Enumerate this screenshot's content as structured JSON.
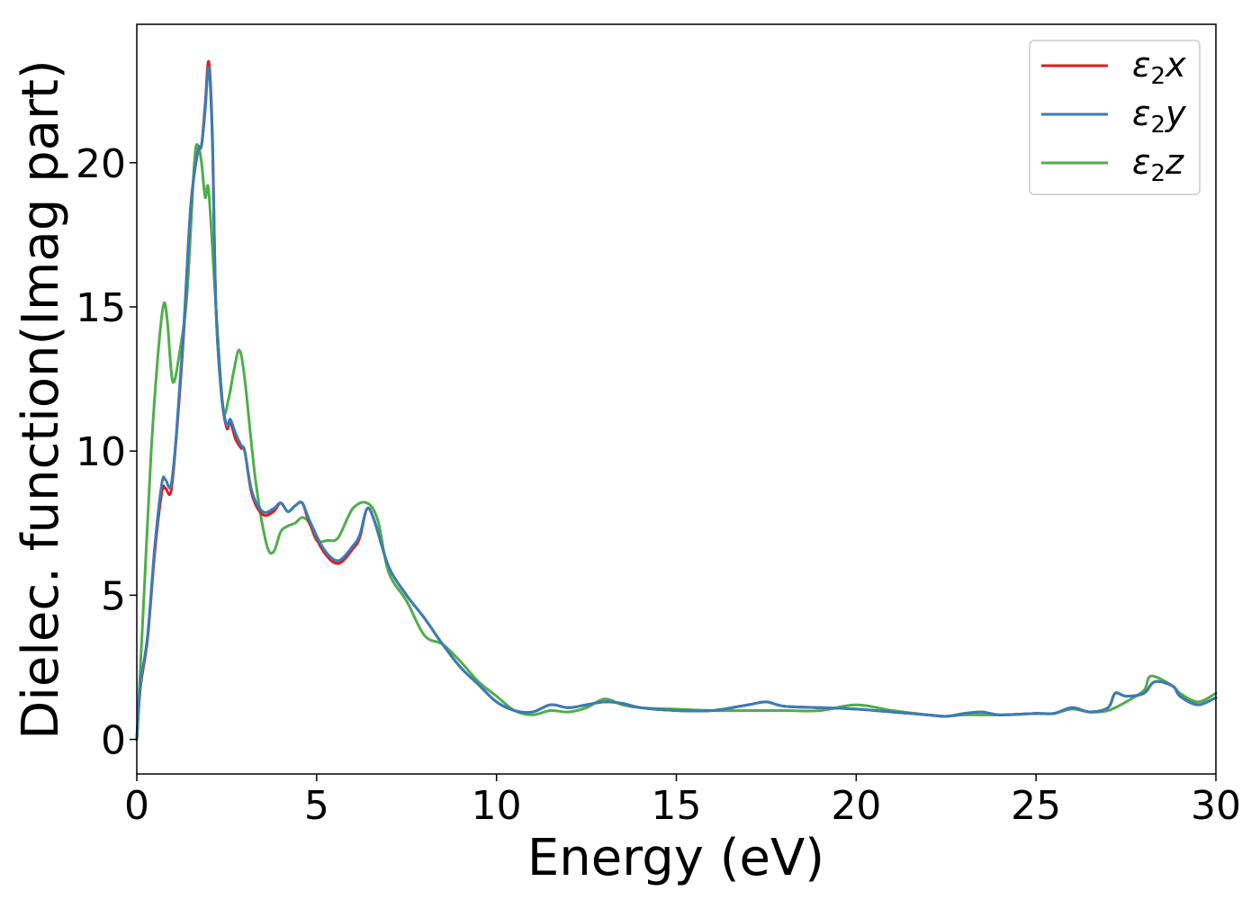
{
  "chart_data": {
    "type": "line",
    "title": "",
    "xlabel": "Energy (eV)",
    "ylabel": "Dielec. function(Imag part)",
    "xlim": [
      0,
      30
    ],
    "ylim": [
      -1.2,
      24.8
    ],
    "xticks": [
      0,
      5,
      10,
      15,
      20,
      25,
      30
    ],
    "yticks": [
      0,
      5,
      10,
      15,
      20
    ],
    "grid": false,
    "legend_position": "top-right",
    "series": [
      {
        "name": "ε2x",
        "legend": {
          "base": "ε",
          "sub": "2",
          "var": "x"
        },
        "color": "#e41a1c",
        "x": [
          0,
          0.1,
          0.3,
          0.5,
          0.7,
          0.8,
          0.95,
          1.1,
          1.3,
          1.5,
          1.7,
          1.8,
          1.9,
          2.0,
          2.1,
          2.2,
          2.35,
          2.5,
          2.6,
          2.75,
          2.9,
          3.0,
          3.2,
          3.5,
          3.8,
          4.0,
          4.2,
          4.4,
          4.6,
          4.8,
          5.2,
          5.6,
          6.0,
          6.2,
          6.4,
          6.6,
          7.0,
          7.5,
          8.0,
          8.5,
          9.0,
          9.5,
          10.0,
          10.5,
          11.0,
          11.5,
          12.0,
          12.5,
          13.0,
          13.5,
          14.0,
          15.0,
          16.0,
          17.0,
          17.5,
          18.0,
          19.0,
          20.0,
          21.0,
          22.0,
          22.5,
          23.0,
          23.5,
          24.0,
          25.0,
          25.5,
          26.0,
          26.5,
          27.0,
          27.2,
          27.5,
          28.0,
          28.3,
          28.8,
          29.0,
          29.5,
          30.0
        ],
        "values": [
          0,
          1.8,
          3.5,
          6.5,
          8.6,
          8.7,
          8.6,
          10.5,
          14.0,
          18.5,
          20.4,
          20.6,
          22.0,
          23.5,
          21.0,
          15.0,
          12.0,
          10.8,
          11.0,
          10.4,
          10.1,
          10.0,
          8.5,
          7.8,
          7.9,
          8.2,
          7.9,
          8.1,
          8.2,
          7.5,
          6.5,
          6.1,
          6.6,
          7.0,
          8.0,
          7.6,
          6.0,
          5.0,
          4.2,
          3.3,
          2.5,
          1.9,
          1.3,
          1.0,
          0.95,
          1.2,
          1.1,
          1.2,
          1.3,
          1.25,
          1.1,
          1.0,
          1.0,
          1.2,
          1.3,
          1.15,
          1.1,
          1.05,
          0.95,
          0.85,
          0.8,
          0.9,
          0.95,
          0.85,
          0.9,
          0.9,
          1.1,
          0.95,
          1.1,
          1.6,
          1.5,
          1.6,
          2.0,
          1.85,
          1.5,
          1.2,
          1.45
        ]
      },
      {
        "name": "ε2y",
        "legend": {
          "base": "ε",
          "sub": "2",
          "var": "y"
        },
        "color": "#377eb8",
        "x": [
          0,
          0.1,
          0.3,
          0.5,
          0.7,
          0.8,
          0.95,
          1.1,
          1.3,
          1.5,
          1.7,
          1.8,
          1.9,
          2.0,
          2.1,
          2.2,
          2.35,
          2.5,
          2.6,
          2.75,
          2.9,
          3.0,
          3.2,
          3.5,
          3.8,
          4.0,
          4.2,
          4.4,
          4.6,
          4.8,
          5.2,
          5.6,
          6.0,
          6.2,
          6.4,
          6.6,
          7.0,
          7.5,
          8.0,
          8.5,
          9.0,
          9.5,
          10.0,
          10.5,
          11.0,
          11.5,
          12.0,
          12.5,
          13.0,
          13.5,
          14.0,
          15.0,
          16.0,
          17.0,
          17.5,
          18.0,
          19.0,
          20.0,
          21.0,
          22.0,
          22.5,
          23.0,
          23.5,
          24.0,
          25.0,
          25.5,
          26.0,
          26.5,
          27.0,
          27.2,
          27.5,
          28.0,
          28.3,
          28.8,
          29.0,
          29.5,
          30.0
        ],
        "values": [
          0,
          1.9,
          3.6,
          6.7,
          8.9,
          9.0,
          8.8,
          10.6,
          14.2,
          18.5,
          20.4,
          20.6,
          21.8,
          23.3,
          20.8,
          15.0,
          12.0,
          10.9,
          11.1,
          10.6,
          10.2,
          10.0,
          8.6,
          7.9,
          8.0,
          8.2,
          7.9,
          8.1,
          8.2,
          7.6,
          6.6,
          6.2,
          6.7,
          7.1,
          8.0,
          7.6,
          6.0,
          5.0,
          4.2,
          3.3,
          2.5,
          1.9,
          1.3,
          1.0,
          0.95,
          1.2,
          1.1,
          1.2,
          1.3,
          1.25,
          1.1,
          1.0,
          1.0,
          1.2,
          1.3,
          1.15,
          1.1,
          1.05,
          0.95,
          0.85,
          0.8,
          0.9,
          0.95,
          0.85,
          0.9,
          0.9,
          1.1,
          0.95,
          1.1,
          1.6,
          1.5,
          1.6,
          2.0,
          1.85,
          1.5,
          1.2,
          1.45
        ]
      },
      {
        "name": "ε2z",
        "legend": {
          "base": "ε",
          "sub": "2",
          "var": "z"
        },
        "color": "#4daf4a",
        "x": [
          0,
          0.2,
          0.4,
          0.6,
          0.75,
          0.85,
          1.0,
          1.2,
          1.4,
          1.6,
          1.7,
          1.8,
          1.9,
          2.0,
          2.2,
          2.4,
          2.55,
          2.7,
          2.85,
          3.0,
          3.3,
          3.6,
          3.8,
          4.0,
          4.2,
          4.4,
          4.6,
          4.8,
          5.0,
          5.3,
          5.6,
          6.0,
          6.4,
          6.7,
          7.0,
          7.5,
          8.0,
          8.5,
          9.0,
          9.5,
          10.0,
          10.5,
          11.0,
          11.5,
          12.0,
          12.5,
          13.0,
          13.5,
          14.0,
          15.0,
          16.0,
          17.0,
          18.0,
          19.0,
          20.0,
          21.0,
          22.0,
          22.5,
          23.0,
          24.0,
          25.0,
          25.5,
          26.0,
          26.5,
          27.0,
          27.5,
          28.0,
          28.2,
          28.8,
          29.0,
          29.5,
          30.0
        ],
        "values": [
          0,
          5.0,
          10.0,
          13.5,
          15.1,
          14.5,
          12.4,
          13.5,
          15.5,
          20.0,
          20.6,
          20.0,
          18.8,
          19.0,
          15.0,
          11.5,
          11.8,
          12.8,
          13.5,
          12.5,
          9.0,
          6.8,
          6.5,
          7.2,
          7.4,
          7.5,
          7.7,
          7.5,
          6.9,
          6.9,
          7.0,
          8.0,
          8.2,
          7.6,
          5.8,
          4.8,
          3.6,
          3.3,
          2.7,
          2.0,
          1.5,
          1.0,
          0.85,
          1.0,
          0.95,
          1.1,
          1.4,
          1.2,
          1.1,
          1.05,
          1.0,
          1.0,
          1.0,
          1.0,
          1.2,
          1.0,
          0.85,
          0.8,
          0.85,
          0.85,
          0.9,
          0.9,
          1.05,
          0.95,
          1.0,
          1.3,
          1.7,
          2.2,
          1.85,
          1.6,
          1.3,
          1.6
        ]
      }
    ]
  }
}
